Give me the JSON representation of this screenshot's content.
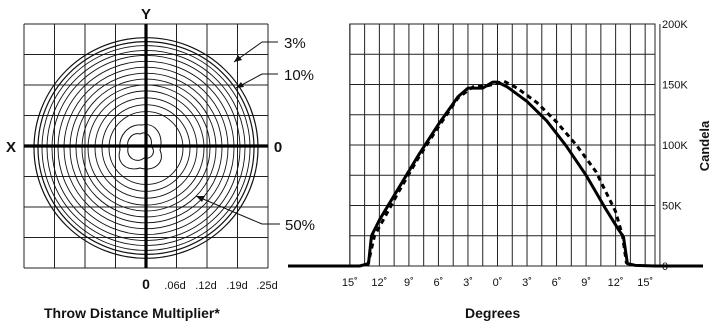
{
  "chart_data": [
    {
      "type": "contour",
      "xlabel": "Throw Distance Multiplier*",
      "axis_labels": {
        "y": "Y",
        "x": "X",
        "x_origin": "0",
        "y_origin": "0"
      },
      "scale_ticks": [
        "0",
        ".06d",
        ".12d",
        ".19d",
        ".25d"
      ],
      "annotations": [
        "3%",
        "10%",
        "50%"
      ],
      "grid": true
    },
    {
      "type": "line",
      "xlabel": "Degrees",
      "ylabel": "Candela",
      "x_ticks": [
        "15˚",
        "12˚",
        "9˚",
        "6˚",
        "3˚",
        "0˚",
        "3˚",
        "6˚",
        "9˚",
        "12˚",
        "15˚"
      ],
      "y_ticks": [
        "0",
        "50K",
        "100K",
        "150K",
        "200K"
      ],
      "xlim": [
        -16,
        16
      ],
      "ylim": [
        0,
        200000
      ],
      "grid": true,
      "series": [
        {
          "style": "solid",
          "x": [
            -16,
            -14,
            -13.1,
            -12.8,
            -12,
            -10,
            -8,
            -6,
            -4,
            -3,
            -1.5,
            -0.5,
            0,
            1,
            3,
            5,
            7,
            9,
            11,
            12.3,
            12.8,
            13.2,
            14,
            16
          ],
          "y": [
            0,
            0,
            2000,
            25000,
            38000,
            65000,
            92000,
            117000,
            140000,
            147000,
            147000,
            152000,
            152000,
            148000,
            136000,
            120000,
            99000,
            75000,
            47000,
            30000,
            24000,
            2000,
            500,
            0
          ]
        },
        {
          "style": "dashed",
          "x": [
            -13.2,
            -12.5,
            -10,
            -8,
            -6,
            -4,
            -2.5,
            -1,
            0,
            0.6,
            2,
            4,
            6,
            8,
            10,
            12,
            12.7,
            13.1
          ],
          "y": [
            0,
            25000,
            62000,
            90000,
            115000,
            139000,
            148000,
            149000,
            151000,
            153000,
            147000,
            135000,
            119000,
            100000,
            78000,
            45000,
            25000,
            2000
          ]
        }
      ]
    }
  ]
}
